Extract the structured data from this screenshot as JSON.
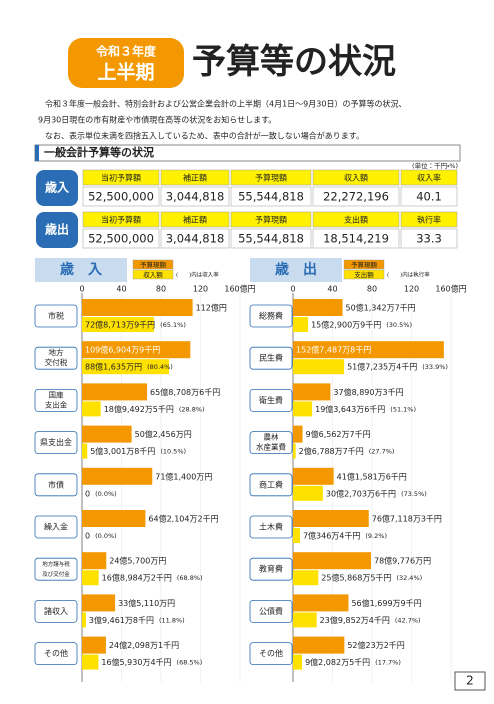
{
  "header": {
    "year": "令和３年度",
    "period": "上半期",
    "title": "予算等の状況"
  },
  "intro": [
    "令和３年度一般会計、特別会計および公営企業会計の上半期（4月1日～9月30日）の予算等の状況、",
    "9月30日現在の市有財産や市債現在高等の状況をお知らせします。",
    "なお、表示単位未満を四捨五入しているため、表中の合計が一致しない場合があります。"
  ],
  "table": {
    "title": "一般会計予算等の状況",
    "unit": "(単位：千円・%)",
    "sections": [
      {
        "label": "歳入",
        "columns": [
          "当初予算額",
          "補正額",
          "予算現額",
          "収入額",
          "収入率"
        ],
        "values": [
          "52,500,000",
          "3,044,818",
          "55,544,818",
          "22,272,196",
          "40.1"
        ]
      },
      {
        "label": "歳出",
        "columns": [
          "当初予算額",
          "補正額",
          "予算現額",
          "支出額",
          "執行率"
        ],
        "values": [
          "52,500,000",
          "3,044,818",
          "55,544,818",
          "18,514,219",
          "33.3"
        ]
      }
    ]
  },
  "chart_data": [
    {
      "type": "bar",
      "title": "歳　入",
      "legend_note": "(　　)内は収入率",
      "xlim": [
        0,
        160
      ],
      "xticks": [
        0,
        40,
        80,
        120,
        {
          "value": 160,
          "label": "160億円"
        }
      ],
      "categories": [
        "市税",
        "地方交付税",
        "国庫支出金",
        "県支出金",
        "市債",
        "繰入金",
        "地方譲与税及び交付金",
        "諸収入",
        "その他"
      ],
      "series": [
        {
          "name": "予算現額",
          "color": "#f39800",
          "values": [
            112,
            109.69049,
            65.87086,
            50.2456,
            71.14,
            64.21042,
            24.57,
            33.511,
            24.20981
          ],
          "value_labels": [
            "112億円",
            "109億6,904万9千円",
            "65億8,708万6千円",
            "50億2,456万円",
            "71億1,400万円",
            "64億2,104万2千円",
            "24億5,700万円",
            "33億5,110万円",
            "24億2,098万1千円"
          ]
        },
        {
          "name": "収入額",
          "color": "#ffe100",
          "values": [
            72.87139,
            88.1635,
            18.94925,
            5.30018,
            0,
            0,
            16.89842,
            3.94618,
            16.59304
          ],
          "value_labels": [
            "72億8,713万9千円",
            "88億1,635万円",
            "18億9,492万5千円",
            "5億3,001万8千円",
            "0",
            "0",
            "16億8,984万2千円",
            "3億9,461万8千円",
            "16億5,930万4千円"
          ]
        }
      ],
      "rate_labels": [
        "(65.1%)",
        "(80.4%)",
        "(28.8%)",
        "(10.5%)",
        "(0.0%)",
        "(0.0%)",
        "(68.8%)",
        "(11.8%)",
        "(68.5%)"
      ]
    },
    {
      "type": "bar",
      "title": "歳　出",
      "legend_note": "(　　)内は執行率",
      "xlim": [
        0,
        160
      ],
      "xticks": [
        0,
        40,
        80,
        120,
        {
          "value": 160,
          "label": "160億円"
        }
      ],
      "categories": [
        "総務費",
        "民生費",
        "衛生費",
        "農林水産業費",
        "商工費",
        "土木費",
        "教育費",
        "公債費",
        "その他"
      ],
      "series": [
        {
          "name": "予算現額",
          "color": "#f39800",
          "values": [
            50.13427,
            152.74878,
            37.88903,
            9.65627,
            41.15816,
            76.71183,
            78.9776,
            56.16999,
            52.00232
          ],
          "value_labels": [
            "50億1,342万7千円",
            "152億7,487万8千円",
            "37億8,890万3千円",
            "9億6,562万7千円",
            "41億1,581万6千円",
            "76億7,118万3千円",
            "78億9,776万円",
            "56億1,699万9千円",
            "52億23万2千円"
          ]
        },
        {
          "name": "支出額",
          "color": "#ffe100",
          "values": [
            15.29009,
            51.72354,
            19.36436,
            2.67887,
            30.27036,
            7.03464,
            25.58685,
            23.98524,
            9.20825
          ],
          "value_labels": [
            "15億2,900万9千円",
            "51億7,235万4千円",
            "19億3,643万6千円",
            "2億6,788万7千円",
            "30億2,703万6千円",
            "7億346万4千円",
            "25億5,868万5千円",
            "23億9,852万4千円",
            "9億2,082万5千円"
          ]
        }
      ],
      "rate_labels": [
        "(30.5%)",
        "(33.9%)",
        "(51.1%)",
        "(27.7%)",
        "(73.5%)",
        "(9.2%)",
        "(32.4%)",
        "(42.7%)",
        "(17.7%)"
      ]
    }
  ],
  "page_number": "2"
}
